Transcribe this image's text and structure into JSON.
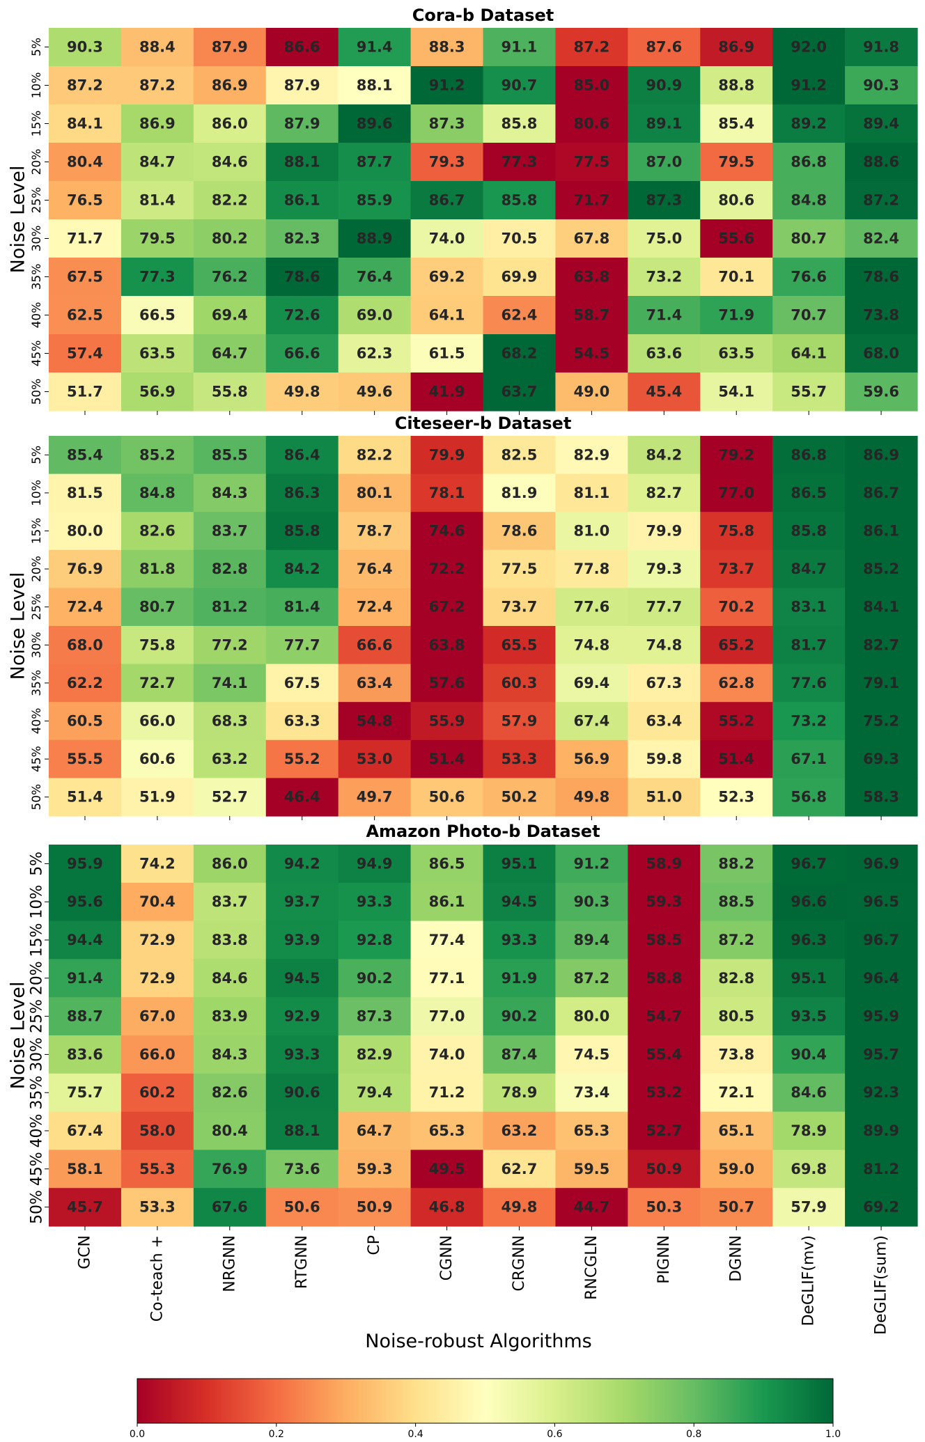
{
  "chart_data": [
    {
      "type": "heatmap",
      "title": "Cora-b Dataset",
      "ylabel": "Noise Level",
      "xlabel": "",
      "x_categories": [
        "GCN",
        "Co-teach +",
        "NRGNN",
        "RTGNN",
        "CP",
        "CGNN",
        "CRGNN",
        "RNCGLN",
        "PIGNN",
        "DGNN",
        "DeGLIF(mv)",
        "DeGLIF(sum)"
      ],
      "y_categories": [
        "5%",
        "10%",
        "15%",
        "20%",
        "25%",
        "30%",
        "35%",
        "40%",
        "45%",
        "50%"
      ],
      "values": [
        [
          90.3,
          88.4,
          87.9,
          86.6,
          91.4,
          88.3,
          91.1,
          87.2,
          87.6,
          86.9,
          92.0,
          91.8
        ],
        [
          87.2,
          87.2,
          86.9,
          87.9,
          88.1,
          91.2,
          90.7,
          85.0,
          90.9,
          88.8,
          91.2,
          90.3
        ],
        [
          84.1,
          86.9,
          86.0,
          87.9,
          89.6,
          87.3,
          85.8,
          80.6,
          89.1,
          85.4,
          89.2,
          89.4
        ],
        [
          80.4,
          84.7,
          84.6,
          88.1,
          87.7,
          79.3,
          77.3,
          77.5,
          87.0,
          79.5,
          86.8,
          88.6
        ],
        [
          76.5,
          81.4,
          82.2,
          86.1,
          85.9,
          86.7,
          85.8,
          71.7,
          87.3,
          80.6,
          84.8,
          87.2
        ],
        [
          71.7,
          79.5,
          80.2,
          82.3,
          88.9,
          74.0,
          70.5,
          67.8,
          75.0,
          55.6,
          80.7,
          82.4
        ],
        [
          67.5,
          77.3,
          76.2,
          78.6,
          76.4,
          69.2,
          69.9,
          63.8,
          73.2,
          70.1,
          76.6,
          78.6
        ],
        [
          62.5,
          66.5,
          69.4,
          72.6,
          69.0,
          64.1,
          62.4,
          58.7,
          71.4,
          71.9,
          70.7,
          73.8
        ],
        [
          57.4,
          63.5,
          64.7,
          66.6,
          62.3,
          61.5,
          68.2,
          54.5,
          63.6,
          63.5,
          64.1,
          68.0
        ],
        [
          51.7,
          56.9,
          55.8,
          49.8,
          49.6,
          41.9,
          63.7,
          49.0,
          45.4,
          54.1,
          55.7,
          59.6
        ]
      ],
      "color_scale": "per-row normalized (0-1), RdYlGn"
    },
    {
      "type": "heatmap",
      "title": "Citeseer-b Dataset",
      "ylabel": "Noise Level",
      "xlabel": "",
      "x_categories": [
        "GCN",
        "Co-teach +",
        "NRGNN",
        "RTGNN",
        "CP",
        "CGNN",
        "CRGNN",
        "RNCGLN",
        "PIGNN",
        "DGNN",
        "DeGLIF(mv)",
        "DeGLIF(sum)"
      ],
      "y_categories": [
        "5%",
        "10%",
        "15%",
        "20%",
        "25%",
        "30%",
        "35%",
        "40%",
        "45%",
        "50%"
      ],
      "values": [
        [
          85.4,
          85.2,
          85.5,
          86.4,
          82.2,
          79.9,
          82.5,
          82.9,
          84.2,
          79.2,
          86.8,
          86.9
        ],
        [
          81.5,
          84.8,
          84.3,
          86.3,
          80.1,
          78.1,
          81.9,
          81.1,
          82.7,
          77.0,
          86.5,
          86.7
        ],
        [
          80.0,
          82.6,
          83.7,
          85.8,
          78.7,
          74.6,
          78.6,
          81.0,
          79.9,
          75.8,
          85.8,
          86.1
        ],
        [
          76.9,
          81.8,
          82.8,
          84.2,
          76.4,
          72.2,
          77.5,
          77.8,
          79.3,
          73.7,
          84.7,
          85.2
        ],
        [
          72.4,
          80.7,
          81.2,
          81.4,
          72.4,
          67.2,
          73.7,
          77.6,
          77.7,
          70.2,
          83.1,
          84.1
        ],
        [
          68.0,
          75.8,
          77.2,
          77.7,
          66.6,
          63.8,
          65.5,
          74.8,
          74.8,
          65.2,
          81.7,
          82.7
        ],
        [
          62.2,
          72.7,
          74.1,
          67.5,
          63.4,
          57.6,
          60.3,
          69.4,
          67.3,
          62.8,
          77.6,
          79.1
        ],
        [
          60.5,
          66.0,
          68.3,
          63.3,
          54.8,
          55.9,
          57.9,
          67.4,
          63.4,
          55.2,
          73.2,
          75.2
        ],
        [
          55.5,
          60.6,
          63.2,
          55.2,
          53.0,
          51.4,
          53.3,
          56.9,
          59.8,
          51.4,
          67.1,
          69.3
        ],
        [
          51.4,
          51.9,
          52.7,
          46.4,
          49.7,
          50.6,
          50.2,
          49.8,
          51.0,
          52.3,
          56.8,
          58.3
        ]
      ],
      "color_scale": "per-row normalized (0-1), RdYlGn"
    },
    {
      "type": "heatmap",
      "title": "Amazon Photo-b Dataset",
      "ylabel": "Noise Level",
      "xlabel": "Noise-robust Algorithms",
      "x_categories": [
        "GCN",
        "Co-teach +",
        "NRGNN",
        "RTGNN",
        "CP",
        "CGNN",
        "CRGNN",
        "RNCGLN",
        "PIGNN",
        "DGNN",
        "DeGLIF(mv)",
        "DeGLIF(sum)"
      ],
      "y_categories": [
        "5%",
        "10%",
        "15%",
        "20%",
        "25%",
        "30%",
        "35%",
        "40%",
        "45%",
        "50%"
      ],
      "values": [
        [
          95.9,
          74.2,
          86.0,
          94.2,
          94.9,
          86.5,
          95.1,
          91.2,
          58.9,
          88.2,
          96.7,
          96.9
        ],
        [
          95.6,
          70.4,
          83.7,
          93.7,
          93.3,
          86.1,
          94.5,
          90.3,
          59.3,
          88.5,
          96.6,
          96.5
        ],
        [
          94.4,
          72.9,
          83.8,
          93.9,
          92.8,
          77.4,
          93.3,
          89.4,
          58.5,
          87.2,
          96.3,
          96.7
        ],
        [
          91.4,
          72.9,
          84.6,
          94.5,
          90.2,
          77.1,
          91.9,
          87.2,
          58.8,
          82.8,
          95.1,
          96.4
        ],
        [
          88.7,
          67.0,
          83.9,
          92.9,
          87.3,
          77.0,
          90.2,
          80.0,
          54.7,
          80.5,
          93.5,
          95.9
        ],
        [
          83.6,
          66.0,
          84.3,
          93.3,
          82.9,
          74.0,
          87.4,
          74.5,
          55.4,
          73.8,
          90.4,
          95.7
        ],
        [
          75.7,
          60.2,
          82.6,
          90.6,
          79.4,
          71.2,
          78.9,
          73.4,
          53.2,
          72.1,
          84.6,
          92.3
        ],
        [
          67.4,
          58.0,
          80.4,
          88.1,
          64.7,
          65.3,
          63.2,
          65.3,
          52.7,
          65.1,
          78.9,
          89.9
        ],
        [
          58.1,
          55.3,
          76.9,
          73.6,
          59.3,
          49.5,
          62.7,
          59.5,
          50.9,
          59.0,
          69.8,
          81.2
        ],
        [
          45.7,
          53.3,
          67.6,
          50.6,
          50.9,
          46.8,
          49.8,
          44.7,
          50.3,
          50.7,
          57.9,
          69.2
        ]
      ],
      "color_scale": "per-row normalized (0-1), RdYlGn"
    }
  ],
  "colorbar": {
    "colormap": "RdYlGn",
    "range": [
      0.0,
      1.0
    ],
    "ticks": [
      "0.0",
      "0.2",
      "0.4",
      "0.6",
      "0.8",
      "1.0"
    ]
  }
}
